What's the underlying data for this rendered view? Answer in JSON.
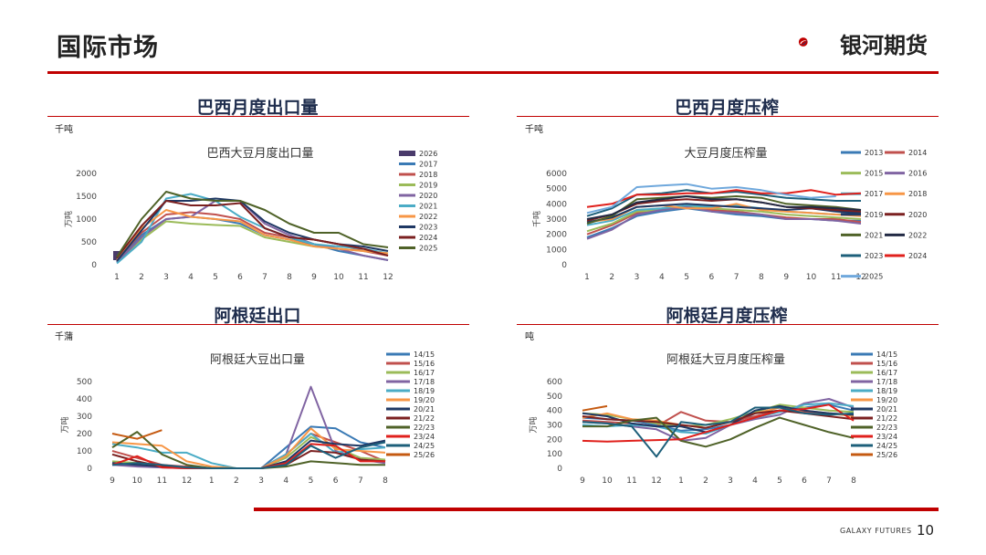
{
  "page": {
    "title": "国际市场",
    "logo_text": "银河期货",
    "footer_brand": "GALAXY FUTURES",
    "page_number": "10"
  },
  "sections": [
    {
      "heading": "巴西月度出口量",
      "unit": "千吨"
    },
    {
      "heading": "巴西月度压榨",
      "unit": "千吨"
    },
    {
      "heading": "阿根廷出口",
      "unit": "千蒲"
    },
    {
      "heading": "阿根廷月度压榨",
      "unit": "吨"
    }
  ],
  "colors": {
    "accent": "#c00000",
    "heading": "#1f2d4d"
  },
  "chart_data": [
    {
      "type": "line",
      "title": "巴西大豆月度出口量",
      "ylabel": "万吨",
      "categories": [
        "1",
        "2",
        "3",
        "4",
        "5",
        "6",
        "7",
        "8",
        "9",
        "10",
        "11",
        "12"
      ],
      "yticks": [
        0,
        500,
        1000,
        1500,
        2000
      ],
      "ylim": [
        0,
        2000
      ],
      "legend_position": "right",
      "series": [
        {
          "name": "2026",
          "color": "#4a3b6b",
          "values": [
            200,
            null,
            null,
            null,
            null,
            null,
            null,
            null,
            null,
            null,
            null,
            null
          ]
        },
        {
          "name": "2017",
          "color": "#3a7ab5",
          "values": [
            60,
            650,
            1000,
            1050,
            1000,
            900,
            650,
            550,
            450,
            300,
            200,
            100
          ]
        },
        {
          "name": "2018",
          "color": "#c0504d",
          "values": [
            100,
            700,
            1100,
            1150,
            1100,
            1000,
            700,
            600,
            550,
            450,
            300,
            200
          ]
        },
        {
          "name": "2019",
          "color": "#9bbb59",
          "values": [
            80,
            550,
            950,
            900,
            870,
            850,
            600,
            500,
            400,
            350,
            300,
            250
          ]
        },
        {
          "name": "2020",
          "color": "#8064a2",
          "values": [
            50,
            600,
            1000,
            1050,
            1400,
            1400,
            900,
            650,
            450,
            350,
            200,
            100
          ]
        },
        {
          "name": "2021",
          "color": "#4bacc6",
          "values": [
            30,
            500,
            1450,
            1550,
            1400,
            1050,
            800,
            600,
            450,
            400,
            350,
            250
          ]
        },
        {
          "name": "2022",
          "color": "#f79646",
          "values": [
            100,
            800,
            1200,
            1050,
            1000,
            950,
            650,
            550,
            400,
            350,
            300,
            250
          ]
        },
        {
          "name": "2023",
          "color": "#1f3864",
          "values": [
            80,
            750,
            1400,
            1400,
            1450,
            1400,
            950,
            700,
            550,
            450,
            400,
            300
          ]
        },
        {
          "name": "2024",
          "color": "#7b2020",
          "values": [
            150,
            850,
            1400,
            1300,
            1300,
            1350,
            800,
            600,
            550,
            450,
            350,
            200
          ]
        },
        {
          "name": "2025",
          "color": "#4f6228",
          "values": [
            170,
            1000,
            1600,
            1450,
            1400,
            1400,
            1200,
            900,
            700,
            700,
            450,
            380
          ]
        }
      ]
    },
    {
      "type": "line",
      "title": "大豆月度压榨量",
      "ylabel": "千吨",
      "categories": [
        "1",
        "2",
        "3",
        "4",
        "5",
        "6",
        "7",
        "8",
        "9",
        "10",
        "11",
        "12"
      ],
      "yticks": [
        0,
        1000,
        2000,
        3000,
        4000,
        5000,
        6000
      ],
      "ylim": [
        0,
        6000
      ],
      "legend_position": "right",
      "series": [
        {
          "name": "2013",
          "color": "#3a7ab5",
          "values": [
            1800,
            2400,
            3200,
            3500,
            3700,
            3500,
            3300,
            3200,
            3000,
            3000,
            2900,
            2900
          ]
        },
        {
          "name": "2014",
          "color": "#c0504d",
          "values": [
            2000,
            2600,
            3400,
            3700,
            3800,
            3600,
            3500,
            3300,
            3100,
            3000,
            3000,
            2800
          ]
        },
        {
          "name": "2015",
          "color": "#9bbb59",
          "values": [
            2200,
            2700,
            3500,
            3600,
            3800,
            3700,
            3600,
            3500,
            3300,
            3200,
            3100,
            3000
          ]
        },
        {
          "name": "2016",
          "color": "#8064a2",
          "values": [
            1700,
            2300,
            3300,
            3600,
            3800,
            3500,
            3400,
            3300,
            3000,
            3000,
            2900,
            2700
          ]
        },
        {
          "name": "2017",
          "color": "#4bacc6",
          "values": [
            2600,
            2900,
            3600,
            3700,
            3900,
            3800,
            3900,
            3700,
            3500,
            3400,
            3300,
            3400
          ]
        },
        {
          "name": "2018",
          "color": "#f79646",
          "values": [
            2800,
            3000,
            3800,
            3900,
            3700,
            3700,
            4000,
            3600,
            3500,
            3400,
            3300,
            3200
          ]
        },
        {
          "name": "2019",
          "color": "#1f3864",
          "values": [
            2800,
            3100,
            3800,
            3900,
            4000,
            3900,
            3800,
            3700,
            3600,
            3700,
            3500,
            3400
          ]
        },
        {
          "name": "2020",
          "color": "#7b2020",
          "values": [
            2900,
            3300,
            4000,
            4200,
            4300,
            4200,
            4300,
            4100,
            3800,
            3700,
            3600,
            3500
          ]
        },
        {
          "name": "2021",
          "color": "#4f6228",
          "values": [
            2700,
            3200,
            4300,
            4400,
            4500,
            4400,
            4500,
            4400,
            4000,
            3900,
            3800,
            3600
          ]
        },
        {
          "name": "2022",
          "color": "#222a44",
          "values": [
            3000,
            3300,
            4100,
            4300,
            4500,
            4300,
            4300,
            4100,
            3800,
            3800,
            3700,
            3600
          ]
        },
        {
          "name": "2023",
          "color": "#1d5f7a",
          "values": [
            3200,
            3700,
            4600,
            4700,
            4900,
            4700,
            4800,
            4600,
            4400,
            4300,
            4200,
            4200
          ]
        },
        {
          "name": "2024",
          "color": "#e0201c",
          "values": [
            3800,
            4000,
            4600,
            4600,
            4700,
            4700,
            4900,
            4700,
            4700,
            4900,
            4600,
            4700
          ]
        },
        {
          "name": "2025",
          "color": "#6fa8dc",
          "values": [
            3400,
            3800,
            5100,
            5200,
            5300,
            5000,
            5100,
            4900,
            4600,
            4400,
            4500,
            null
          ]
        }
      ]
    },
    {
      "type": "line",
      "title": "阿根廷大豆出口量",
      "ylabel": "万吨",
      "categories": [
        "9",
        "10",
        "11",
        "12",
        "1",
        "2",
        "3",
        "4",
        "5",
        "6",
        "7",
        "8"
      ],
      "yticks": [
        0,
        100,
        200,
        300,
        400,
        500
      ],
      "ylim": [
        0,
        500
      ],
      "legend_position": "right",
      "series": [
        {
          "name": "14/15",
          "color": "#3a7ab5",
          "values": [
            20,
            15,
            10,
            5,
            0,
            0,
            0,
            120,
            240,
            230,
            150,
            120
          ]
        },
        {
          "name": "15/16",
          "color": "#c0504d",
          "values": [
            100,
            60,
            20,
            10,
            0,
            0,
            0,
            80,
            200,
            150,
            100,
            40
          ]
        },
        {
          "name": "16/17",
          "color": "#9bbb59",
          "values": [
            40,
            30,
            15,
            5,
            0,
            0,
            0,
            60,
            180,
            120,
            60,
            50
          ]
        },
        {
          "name": "17/18",
          "color": "#8064a2",
          "values": [
            20,
            10,
            5,
            0,
            0,
            0,
            0,
            80,
            470,
            100,
            50,
            30
          ]
        },
        {
          "name": "18/19",
          "color": "#4bacc6",
          "values": [
            140,
            120,
            90,
            90,
            30,
            0,
            0,
            80,
            200,
            90,
            110,
            120
          ]
        },
        {
          "name": "19/20",
          "color": "#f79646",
          "values": [
            150,
            140,
            130,
            40,
            10,
            0,
            0,
            70,
            230,
            110,
            100,
            90
          ]
        },
        {
          "name": "20/21",
          "color": "#1f3864",
          "values": [
            30,
            20,
            10,
            5,
            0,
            0,
            0,
            40,
            160,
            140,
            130,
            160
          ]
        },
        {
          "name": "21/22",
          "color": "#7b2020",
          "values": [
            80,
            40,
            10,
            5,
            0,
            0,
            0,
            20,
            100,
            90,
            50,
            40
          ]
        },
        {
          "name": "22/23",
          "color": "#4f6228",
          "values": [
            120,
            210,
            80,
            20,
            0,
            0,
            0,
            10,
            40,
            30,
            20,
            20
          ]
        },
        {
          "name": "23/24",
          "color": "#e0201c",
          "values": [
            20,
            70,
            5,
            0,
            0,
            0,
            0,
            30,
            140,
            130,
            40,
            40
          ]
        },
        {
          "name": "24/25",
          "color": "#1d5f7a",
          "values": [
            20,
            30,
            20,
            5,
            0,
            0,
            0,
            20,
            130,
            60,
            120,
            150
          ]
        },
        {
          "name": "25/26",
          "color": "#c55a11",
          "values": [
            200,
            170,
            220,
            null,
            null,
            null,
            null,
            null,
            null,
            null,
            null,
            null
          ]
        }
      ]
    },
    {
      "type": "line",
      "title": "阿根廷大豆月度压榨量",
      "ylabel": "万吨",
      "categories": [
        "9",
        "10",
        "11",
        "12",
        "1",
        "2",
        "3",
        "4",
        "5",
        "6",
        "7",
        "8"
      ],
      "yticks": [
        0,
        100,
        200,
        300,
        400,
        500,
        600
      ],
      "ylim": [
        0,
        600
      ],
      "legend_position": "right",
      "series": [
        {
          "name": "14/15",
          "color": "#3a7ab5",
          "values": [
            350,
            340,
            330,
            300,
            260,
            270,
            300,
            380,
            400,
            420,
            440,
            400
          ]
        },
        {
          "name": "15/16",
          "color": "#c0504d",
          "values": [
            330,
            320,
            310,
            290,
            390,
            330,
            320,
            360,
            400,
            390,
            380,
            370
          ]
        },
        {
          "name": "16/17",
          "color": "#9bbb59",
          "values": [
            380,
            370,
            340,
            310,
            290,
            300,
            340,
            390,
            440,
            420,
            400,
            390
          ]
        },
        {
          "name": "17/18",
          "color": "#8064a2",
          "values": [
            320,
            310,
            290,
            270,
            190,
            210,
            300,
            340,
            370,
            450,
            480,
            420
          ]
        },
        {
          "name": "18/19",
          "color": "#4bacc6",
          "values": [
            300,
            290,
            300,
            290,
            250,
            240,
            300,
            350,
            390,
            440,
            450,
            430
          ]
        },
        {
          "name": "19/20",
          "color": "#f79646",
          "values": [
            350,
            380,
            340,
            330,
            300,
            280,
            320,
            380,
            420,
            400,
            380,
            360
          ]
        },
        {
          "name": "20/21",
          "color": "#1f3864",
          "values": [
            380,
            360,
            310,
            290,
            290,
            250,
            300,
            400,
            430,
            400,
            380,
            370
          ]
        },
        {
          "name": "21/22",
          "color": "#7b2020",
          "values": [
            360,
            340,
            330,
            320,
            300,
            280,
            320,
            380,
            400,
            380,
            360,
            340
          ]
        },
        {
          "name": "22/23",
          "color": "#4f6228",
          "values": [
            290,
            290,
            330,
            350,
            190,
            150,
            200,
            280,
            350,
            300,
            250,
            210
          ]
        },
        {
          "name": "23/24",
          "color": "#e0201c",
          "values": [
            190,
            185,
            190,
            195,
            200,
            250,
            300,
            350,
            400,
            410,
            440,
            330
          ]
        },
        {
          "name": "24/25",
          "color": "#1d5f7a",
          "values": [
            320,
            310,
            290,
            80,
            320,
            300,
            320,
            420,
            420,
            380,
            370,
            380
          ]
        },
        {
          "name": "25/26",
          "color": "#c55a11",
          "values": [
            400,
            430,
            null,
            null,
            null,
            null,
            null,
            null,
            null,
            null,
            null,
            null
          ]
        }
      ]
    }
  ]
}
